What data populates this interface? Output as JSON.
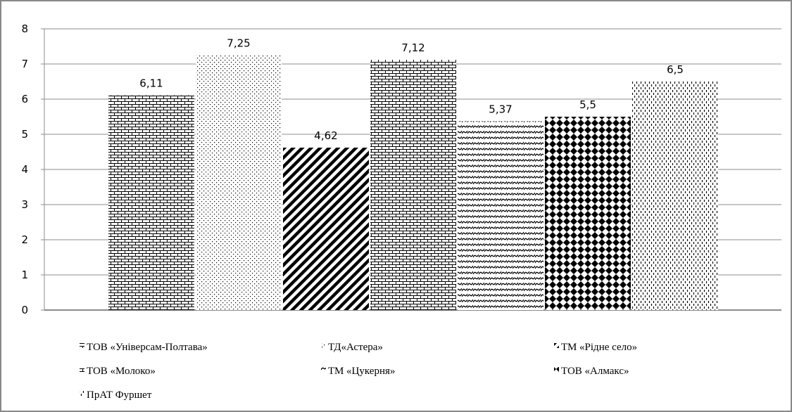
{
  "chart_data": {
    "type": "bar",
    "title": "",
    "xlabel": "",
    "ylabel": "",
    "ylim": [
      0,
      8
    ],
    "y_ticks": [
      0,
      1,
      2,
      3,
      4,
      5,
      6,
      7,
      8
    ],
    "grid": "horizontal",
    "legend_position": "bottom",
    "series": [
      {
        "name": "ТОВ «Універсам-Полтава»",
        "value": 6.11,
        "label": "6,11",
        "pattern": "brick"
      },
      {
        "name": "ТД«Астера»",
        "value": 7.25,
        "label": "7,25",
        "pattern": "sparse-dots"
      },
      {
        "name": "ТМ «Рідне село»",
        "value": 4.62,
        "label": "4,62",
        "pattern": "wide-diagonal"
      },
      {
        "name": "ТОВ  «Молоко»",
        "value": 7.12,
        "label": "7,12",
        "pattern": "brick"
      },
      {
        "name": "ТМ «Цукерня»",
        "value": 5.37,
        "label": "5,37",
        "pattern": "wave"
      },
      {
        "name": "ТОВ «Алмакс»",
        "value": 5.5,
        "label": "5,5",
        "pattern": "diamond"
      },
      {
        "name": "ПрАТ Фуршет",
        "value": 6.5,
        "label": "6,5",
        "pattern": "dashed-vertical"
      }
    ],
    "colors": {
      "frame": "#888888",
      "grid": "#8c8c8c",
      "ink": "#000000"
    }
  }
}
